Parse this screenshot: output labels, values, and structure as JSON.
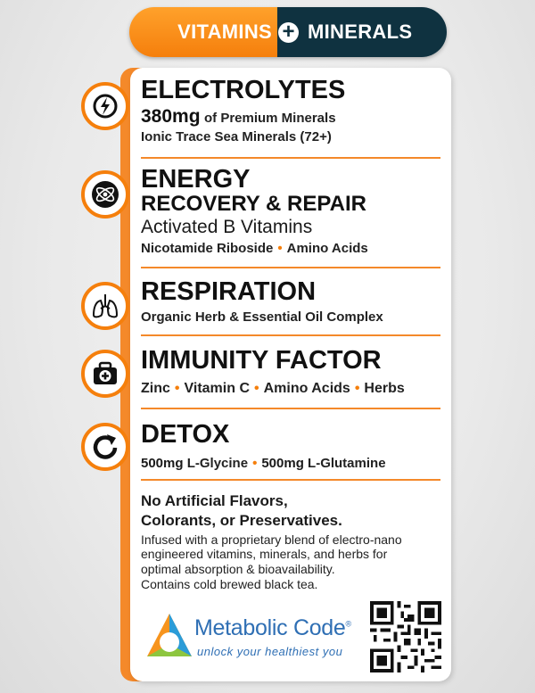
{
  "header": {
    "left": "VITAMINS",
    "plus": "+",
    "right": "MINERALS"
  },
  "sections": [
    {
      "icon": "lightning-bolt-icon",
      "title": "ELECTROLYTES",
      "amount": "380mg",
      "amount_text": "of Premium Minerals",
      "line": "Ionic Trace Sea Minerals (72+)"
    },
    {
      "icon": "atom-icon",
      "title": "ENERGY",
      "title2": "RECOVERY & REPAIR",
      "sub": "Activated B Vitamins",
      "items": [
        "Nicotamide Riboside",
        "Amino Acids"
      ]
    },
    {
      "icon": "lungs-icon",
      "title": "RESPIRATION",
      "line": "Organic Herb & Essential Oil Complex"
    },
    {
      "icon": "medical-kit-icon",
      "title": "IMMUNITY FACTOR",
      "items": [
        "Zinc",
        "Vitamin C",
        "Amino Acids",
        "Herbs"
      ]
    },
    {
      "icon": "cycle-arrow-icon",
      "title": "DETOX",
      "a_amount": "500mg",
      "a_name": "L-Glycine",
      "b_amount": "500mg",
      "b_name": "L-Glutamine"
    }
  ],
  "claims": {
    "line1": "No Artificial Flavors,",
    "line2": "Colorants, or Preservatives.",
    "body": [
      "Infused with a proprietary blend of electro-nano",
      "engineered vitamins, minerals, and herbs for",
      "optimal absorption & bioavailability.",
      "Contains cold brewed black tea."
    ]
  },
  "brand": {
    "name": "Metabolic Code",
    "reg": "®",
    "tagline": "unlock your healthiest you"
  },
  "colors": {
    "orange": "#f57f0c",
    "navy": "#0f3240",
    "brand_blue": "#2f6fb4"
  }
}
